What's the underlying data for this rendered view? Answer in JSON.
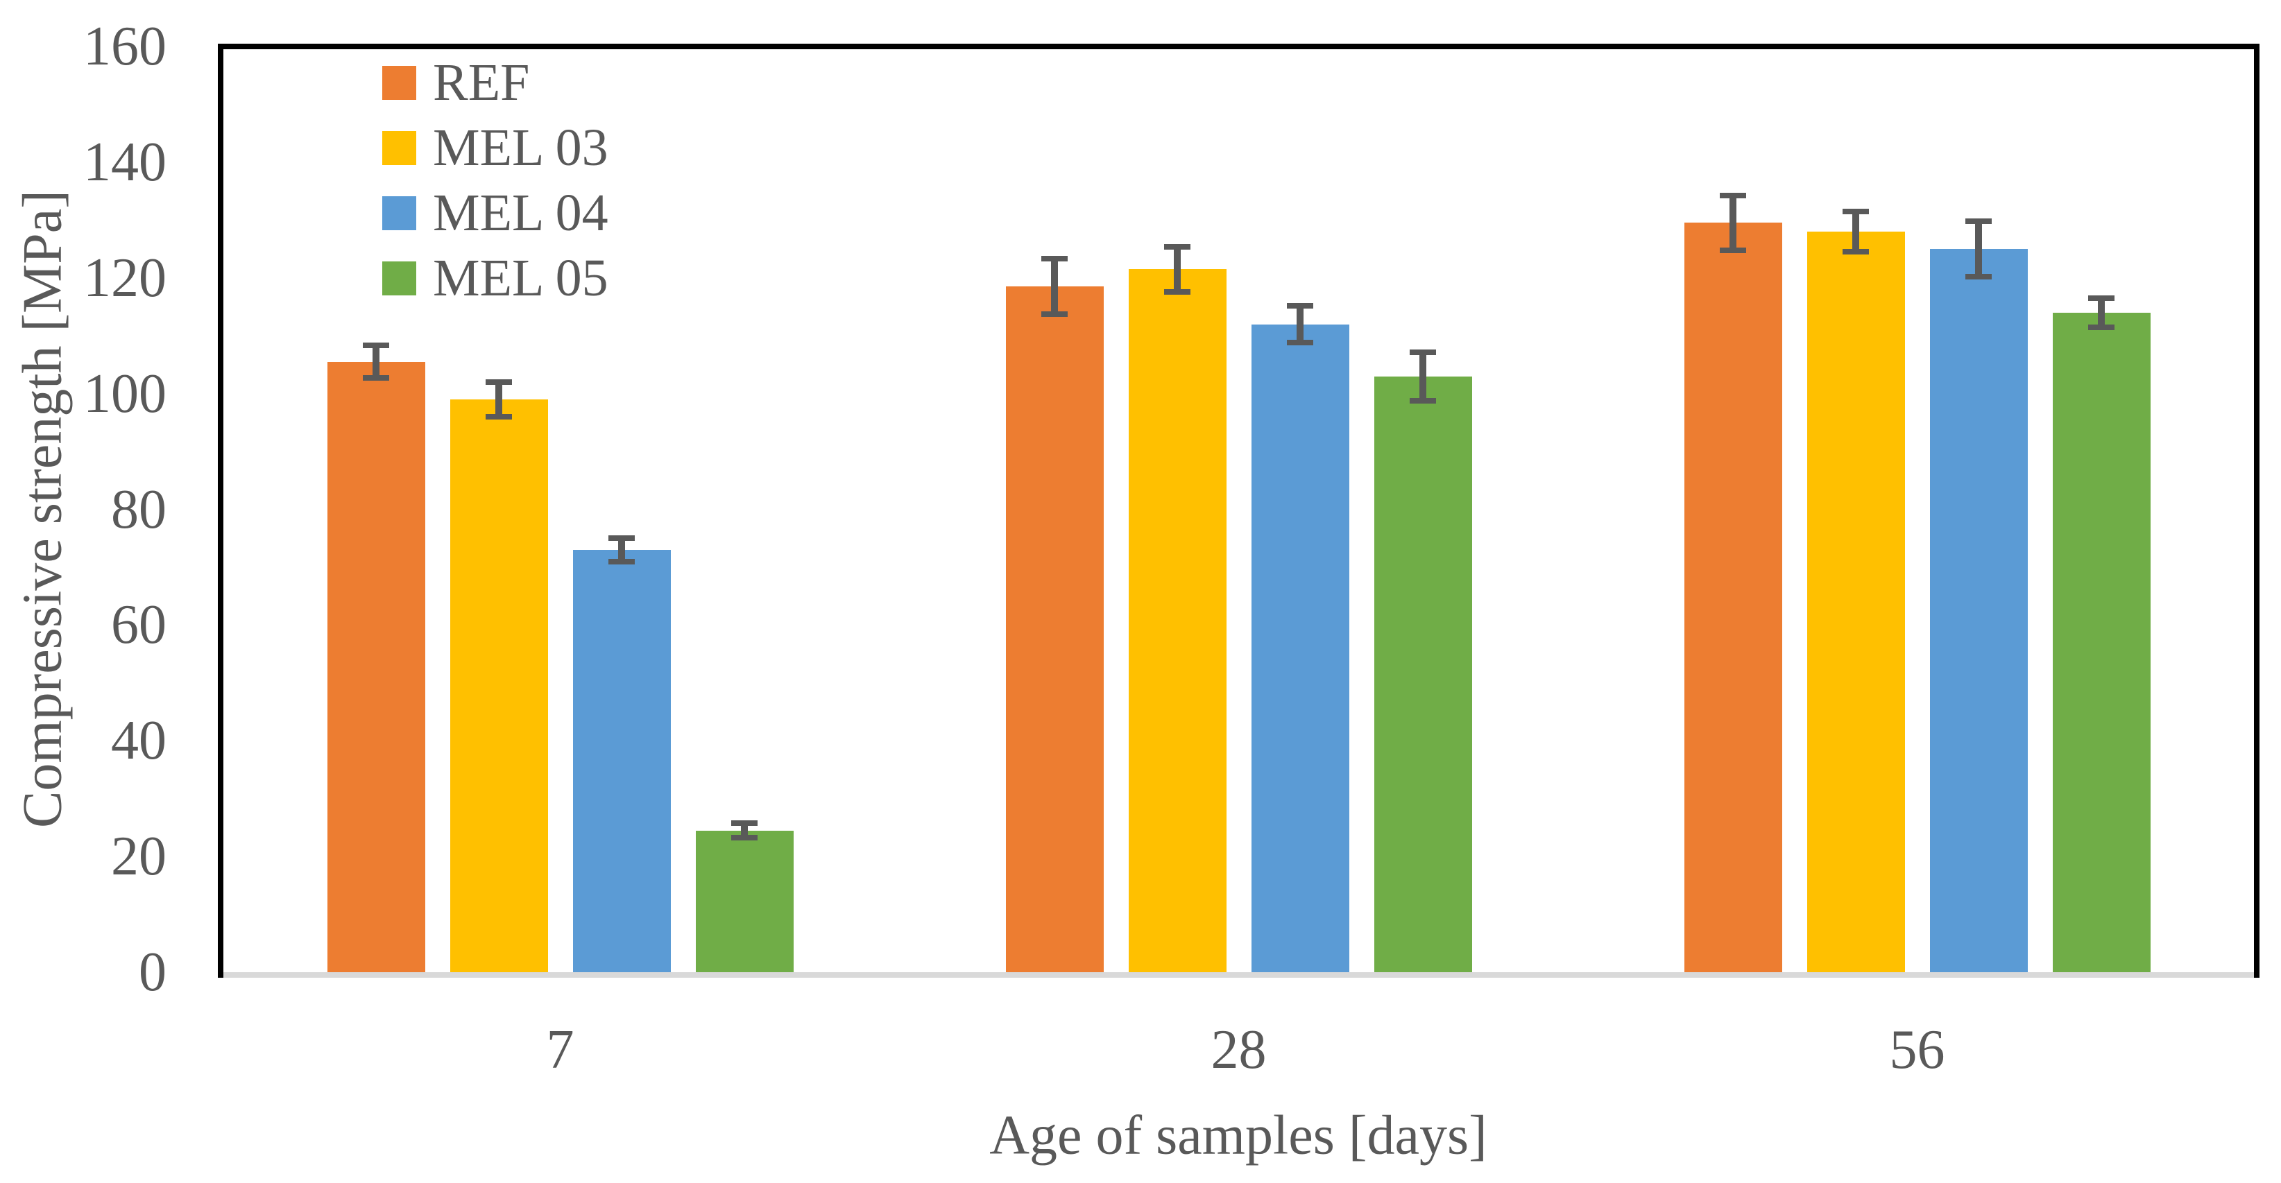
{
  "chart_data": {
    "type": "bar",
    "title": "",
    "categories": [
      "7",
      "28",
      "56"
    ],
    "series": [
      {
        "name": "REF",
        "color": "#ED7D31",
        "values": [
          105.5,
          118.5,
          129.5
        ],
        "errors": [
          2.8,
          4.8,
          4.7
        ]
      },
      {
        "name": "MEL 03",
        "color": "#FFC000",
        "values": [
          99.0,
          121.5,
          128.0
        ],
        "errors": [
          3.0,
          3.9,
          3.5
        ]
      },
      {
        "name": "MEL 04",
        "color": "#5B9BD5",
        "values": [
          73.0,
          112.0,
          125.0
        ],
        "errors": [
          2.0,
          3.2,
          4.8
        ]
      },
      {
        "name": "MEL 05",
        "color": "#70AD47",
        "values": [
          24.5,
          103.0,
          114.0
        ],
        "errors": [
          1.3,
          4.2,
          2.5
        ]
      }
    ],
    "xlabel": "Age of samples [days]",
    "ylabel": "Compressive strength [MPa]",
    "ylim": [
      0,
      160
    ],
    "yticks": [
      0,
      20,
      40,
      60,
      80,
      100,
      120,
      140,
      160
    ],
    "grid": false,
    "legend_position": "top-left-inside",
    "colors": {
      "text": "#595959",
      "error_bar": "#595959",
      "frame": "#000000",
      "baseline": "#D9D9D9"
    }
  }
}
